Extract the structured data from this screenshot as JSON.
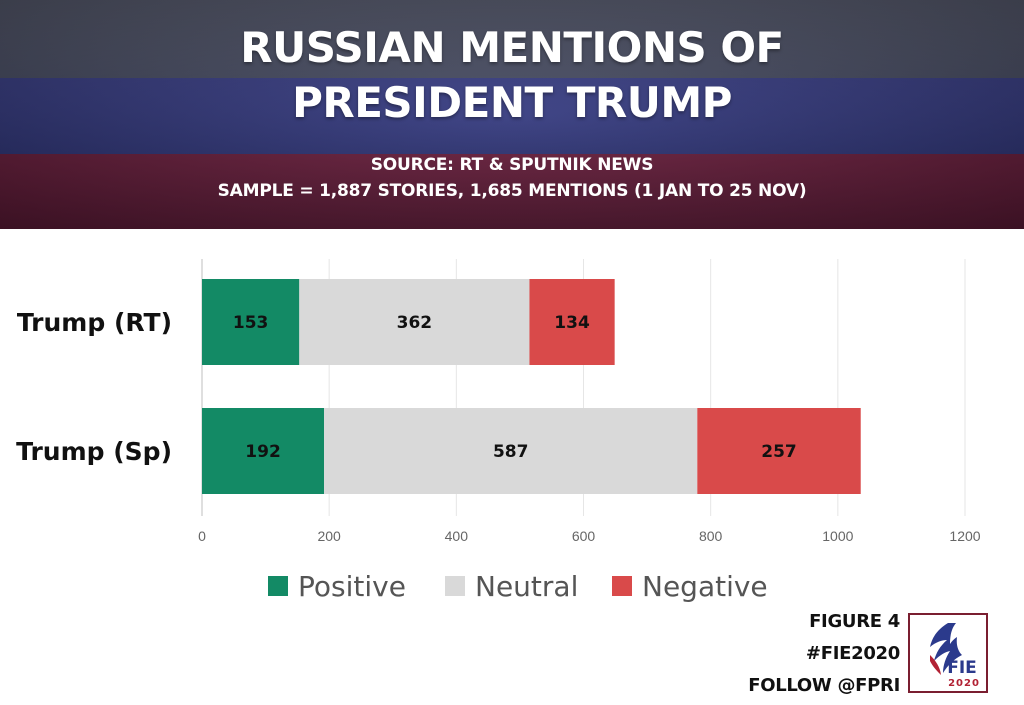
{
  "header": {
    "title_line1": "RUSSIAN MENTIONS OF",
    "title_line2": "PRESIDENT TRUMP",
    "source": "SOURCE: RT & SPUTNIK NEWS",
    "sample": "SAMPLE = 1,887 STORIES, 1,685 MENTIONS (1 JAN TO 25 NOV)"
  },
  "chart_data": {
    "type": "bar",
    "orientation": "horizontal",
    "stacked": true,
    "categories": [
      "Trump (RT)",
      "Trump (Sp)"
    ],
    "series": [
      {
        "name": "Positive",
        "values": [
          153,
          192
        ],
        "color": "#138a65"
      },
      {
        "name": "Neutral",
        "values": [
          362,
          587
        ],
        "color": "#d9d9d9"
      },
      {
        "name": "Negative",
        "values": [
          134,
          257
        ],
        "color": "#d94a4a"
      }
    ],
    "xlim": [
      0,
      1200
    ],
    "xticks": [
      0,
      200,
      400,
      600,
      800,
      1000,
      1200
    ],
    "grid": true,
    "legend_position": "bottom"
  },
  "footer": {
    "figure": "FIGURE 4",
    "hashtag": "#FIE2020",
    "follow": "FOLLOW @FPRI",
    "logo_text": "FIE",
    "logo_year": "2020"
  }
}
